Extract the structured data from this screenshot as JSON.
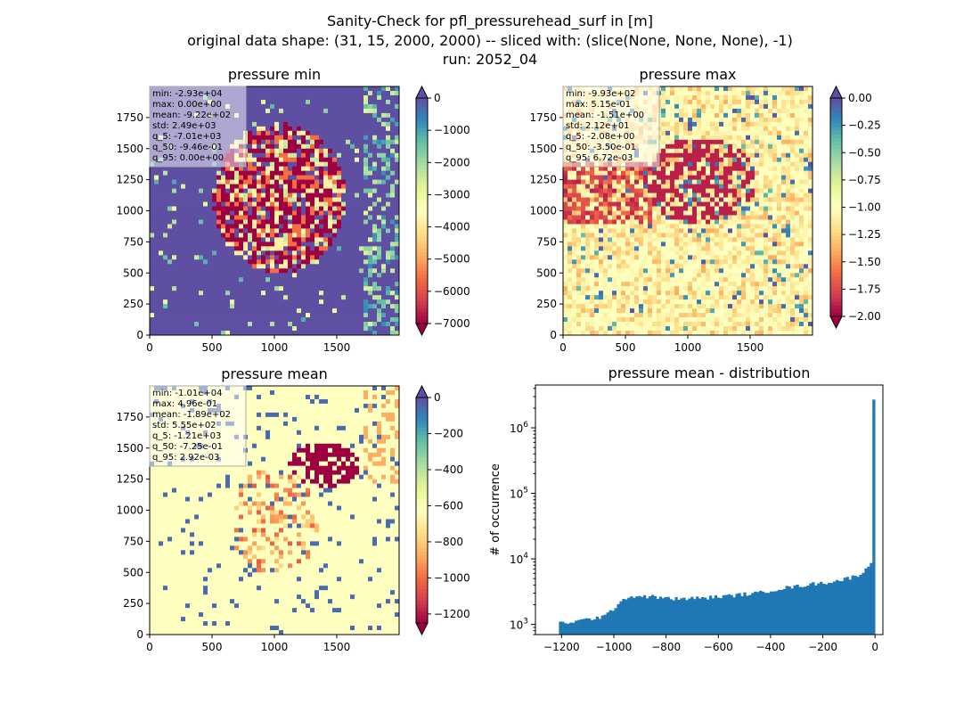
{
  "figure": {
    "suptitle_line1": "Sanity-Check for pfl_pressurehead_surf in [m]",
    "suptitle_line2": "original data shape: (31, 15, 2000, 2000) -- sliced with: (slice(None, None, None), -1)",
    "suptitle_line3": "run: 2052_04"
  },
  "chart_data": [
    {
      "type": "heatmap",
      "title": "pressure min",
      "colormap": "Spectral",
      "colormap_colors": [
        "#9e0142",
        "#d53e4f",
        "#f46d43",
        "#fdae61",
        "#fee08b",
        "#ffffbf",
        "#e6f598",
        "#abdda4",
        "#66c2a5",
        "#3288bd",
        "#5e4fa2"
      ],
      "xlim": [
        0,
        2000
      ],
      "ylim": [
        0,
        2000
      ],
      "xticks": [
        "0",
        "500",
        "1000",
        "1500"
      ],
      "yticks": [
        "0",
        "250",
        "500",
        "750",
        "1000",
        "1250",
        "1500",
        "1750"
      ],
      "colorbar": {
        "range": [
          -7000,
          0
        ],
        "ticks": [
          "0",
          "−1000",
          "−2000",
          "−3000",
          "−4000",
          "−5000",
          "−6000",
          "−7000"
        ],
        "extend": "both"
      },
      "stats": [
        "min: -2.93e+04",
        "max: 0.00e+00",
        "mean: -9.22e+02",
        "std: 2.49e+03",
        "q_5: -7.01e+03",
        "q_50: -9.46e-01",
        "q_95: 0.00e+00"
      ]
    },
    {
      "type": "heatmap",
      "title": "pressure max",
      "colormap": "Spectral",
      "colormap_colors": [
        "#9e0142",
        "#d53e4f",
        "#f46d43",
        "#fdae61",
        "#fee08b",
        "#ffffbf",
        "#e6f598",
        "#abdda4",
        "#66c2a5",
        "#3288bd",
        "#5e4fa2"
      ],
      "xlim": [
        0,
        2000
      ],
      "ylim": [
        0,
        2000
      ],
      "xticks": [
        "0",
        "500",
        "1000",
        "1500"
      ],
      "yticks": [
        "0",
        "250",
        "500",
        "750",
        "1000",
        "1250",
        "1500",
        "1750"
      ],
      "colorbar": {
        "range": [
          -2.0,
          0.0
        ],
        "ticks": [
          "0.00",
          "−0.25",
          "−0.50",
          "−0.75",
          "−1.00",
          "−1.25",
          "−1.50",
          "−1.75",
          "−2.00"
        ],
        "extend": "both"
      },
      "stats": [
        "min: -9.93e+02",
        "max: 5.15e-01",
        "mean: -1.51e+00",
        "std: 2.12e+01",
        "q_5: -2.08e+00",
        "q_50: -3.50e-01",
        "q_95: 6.72e-03"
      ]
    },
    {
      "type": "heatmap",
      "title": "pressure mean",
      "colormap": "Spectral",
      "colormap_colors": [
        "#9e0142",
        "#d53e4f",
        "#f46d43",
        "#fdae61",
        "#fee08b",
        "#ffffbf",
        "#e6f598",
        "#abdda4",
        "#66c2a5",
        "#3288bd",
        "#5e4fa2"
      ],
      "xlim": [
        0,
        2000
      ],
      "ylim": [
        0,
        2000
      ],
      "xticks": [
        "0",
        "500",
        "1000",
        "1500"
      ],
      "yticks": [
        "0",
        "250",
        "500",
        "750",
        "1000",
        "1250",
        "1500",
        "1750"
      ],
      "colorbar": {
        "range": [
          -1250,
          0
        ],
        "ticks": [
          "0",
          "−200",
          "−400",
          "−600",
          "−800",
          "−1000",
          "−1200"
        ],
        "extend": "both"
      },
      "stats": [
        "min: -1.01e+04",
        "max: 4.96e-01",
        "mean: -1.89e+02",
        "std: 5.55e+02",
        "q_5: -1.21e+03",
        "q_50: -7.25e-01",
        "q_95: 2.92e-03"
      ]
    },
    {
      "type": "bar",
      "title": "pressure mean - distribution",
      "xlabel": "",
      "ylabel": "# of occurrence",
      "yscale": "log",
      "xlim": [
        -1300,
        30
      ],
      "ylim": [
        700,
        4500000
      ],
      "xticks": [
        "−1200",
        "−1000",
        "−800",
        "−600",
        "−400",
        "−200",
        "0"
      ],
      "yticks": [
        "10^3",
        "10^4",
        "10^5",
        "10^6"
      ],
      "bar_color": "#1f77b4",
      "histogram": {
        "bin_range": [
          -1210,
          0
        ],
        "knots_x": [
          -1210,
          -1150,
          -1100,
          -1050,
          -1020,
          -1000,
          -980,
          -950,
          -900,
          -850,
          -800,
          -750,
          -700,
          -650,
          -600,
          -550,
          -500,
          -450,
          -400,
          -350,
          -300,
          -250,
          -200,
          -150,
          -100,
          -60,
          -40,
          -25,
          -15,
          -10,
          -7,
          -4,
          -2
        ],
        "knots_count": [
          1050,
          1100,
          1200,
          1300,
          1450,
          1750,
          2200,
          2600,
          2700,
          2650,
          2500,
          2450,
          2500,
          2550,
          2650,
          2750,
          2900,
          3000,
          3300,
          3600,
          3800,
          4100,
          4300,
          4600,
          5100,
          5800,
          6500,
          7500,
          9000,
          11000,
          14000,
          30000,
          2700000
        ]
      }
    }
  ]
}
